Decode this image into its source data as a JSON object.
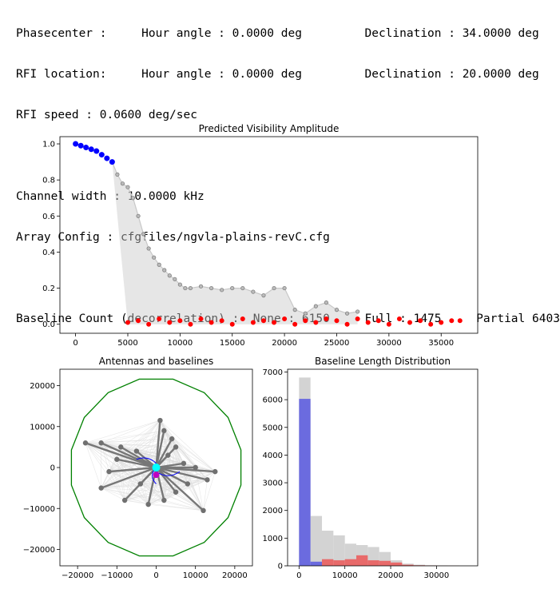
{
  "header": {
    "line1": "Phasecenter :     Hour angle : 0.0000 deg         Declination : 34.0000 deg",
    "line2": "RFI location:     Hour angle : 0.0000 deg         Declination : 20.0000 deg",
    "line3": "RFI speed : 0.0600 deg/sec",
    "line4": "",
    "line5": "Channel width : 10.0000 kHz",
    "line6": "Array Config : cfgfiles/ngvla-plains-revC.cfg",
    "line7": "",
    "line8": "Baseline Count (decorrelation) :  None : 6150     Full : 1475     Partial 6403"
  },
  "colors": {
    "gray_points": "#808080",
    "gray_lines": "#c8c8c8",
    "blue": "#0000ff",
    "red": "#ff0000",
    "green": "#008000",
    "cyan": "#00ffff",
    "magenta": "#c000c0",
    "hist_gray": "#d3d3d3",
    "hist_blue": "#6b6bdf",
    "hist_red": "#e86a6a"
  },
  "chart_data": [
    {
      "type": "scatter",
      "title": "Predicted Visibility Amplitude",
      "xlabel": "",
      "ylabel": "",
      "xlim": [
        -1500,
        38500
      ],
      "ylim": [
        -0.05,
        1.04
      ],
      "xticks": [
        0,
        5000,
        10000,
        15000,
        20000,
        25000,
        30000,
        35000
      ],
      "xtick_labels": [
        "0",
        "5000",
        "10000",
        "15000",
        "20000",
        "25000",
        "30000",
        "35000"
      ],
      "yticks": [
        0.0,
        0.2,
        0.4,
        0.6,
        0.8,
        1.0
      ],
      "ytick_labels": [
        "0.0",
        "0.2",
        "0.4",
        "0.6",
        "0.8",
        "1.0"
      ],
      "grid": false,
      "series": [
        {
          "color_key": "gray_points",
          "x": [
            3500,
            4000,
            4500,
            5000,
            5500,
            6000,
            6500,
            7000,
            7500,
            8000,
            8500,
            9000,
            9500,
            10000,
            10500,
            11000,
            12000,
            13000,
            14000,
            15000,
            16000,
            17000,
            18000,
            19000,
            20000,
            21000,
            22000,
            23000,
            24000,
            25000,
            26000,
            27000
          ],
          "y": [
            0.9,
            0.83,
            0.78,
            0.76,
            0.7,
            0.6,
            0.5,
            0.42,
            0.37,
            0.33,
            0.3,
            0.27,
            0.25,
            0.22,
            0.2,
            0.2,
            0.21,
            0.2,
            0.19,
            0.2,
            0.2,
            0.18,
            0.16,
            0.2,
            0.2,
            0.08,
            0.06,
            0.1,
            0.12,
            0.08,
            0.06,
            0.07
          ]
        },
        {
          "color_key": "blue",
          "x": [
            0,
            500,
            1000,
            1500,
            2000,
            2500,
            3000,
            3500
          ],
          "y": [
            1.0,
            0.99,
            0.98,
            0.97,
            0.96,
            0.94,
            0.92,
            0.9
          ]
        },
        {
          "color_key": "red",
          "x": [
            5000,
            6000,
            7000,
            8000,
            9000,
            10000,
            11000,
            12000,
            13000,
            14000,
            15000,
            16000,
            17000,
            18000,
            19000,
            20000,
            21000,
            22000,
            23000,
            24000,
            25000,
            26000,
            27000,
            28000,
            29000,
            30000,
            31000,
            32000,
            33000,
            34000,
            35000,
            36000,
            36800
          ],
          "y": [
            0.01,
            0.02,
            0.0,
            0.03,
            0.01,
            0.02,
            0.0,
            0.03,
            0.01,
            0.02,
            0.0,
            0.03,
            0.01,
            0.02,
            0.01,
            0.03,
            0.0,
            0.02,
            0.01,
            0.03,
            0.02,
            0.0,
            0.03,
            0.01,
            0.02,
            0.0,
            0.03,
            0.01,
            0.02,
            0.0,
            0.01,
            0.02,
            0.02
          ]
        }
      ]
    },
    {
      "type": "scatter",
      "title": "Antennas and baselines",
      "xlim": [
        -24500,
        24500
      ],
      "ylim": [
        -24000,
        24000
      ],
      "xticks": [
        -20000,
        -10000,
        0,
        10000,
        20000
      ],
      "xtick_labels": [
        "−20000",
        "−10000",
        "0",
        "10000",
        "20000"
      ],
      "yticks": [
        -20000,
        -10000,
        0,
        10000,
        20000
      ],
      "ytick_labels": [
        "−20000",
        "−10000",
        "0",
        "10000",
        "20000"
      ],
      "antennas": {
        "x": [
          -18000,
          -14000,
          -9000,
          -5000,
          -10000,
          -12000,
          -14000,
          -8000,
          -4000,
          1000,
          2000,
          4000,
          5000,
          3000,
          7000,
          10000,
          12000,
          15000,
          13000,
          8000,
          5000,
          2000,
          -2000
        ],
        "y": [
          6000,
          6000,
          5000,
          4000,
          2000,
          -1000,
          -5000,
          -8000,
          -4000,
          11500,
          9000,
          7000,
          5000,
          3000,
          1000,
          0,
          -10500,
          -1000,
          -3000,
          -4000,
          -6000,
          -8000,
          -9000
        ]
      },
      "circle_radius": 22000
    },
    {
      "type": "bar",
      "title": "Baseline Length Distribution",
      "xlim": [
        -2500,
        39000
      ],
      "ylim": [
        0,
        7100
      ],
      "xticks": [
        0,
        10000,
        20000,
        30000
      ],
      "xtick_labels": [
        "0",
        "10000",
        "20000",
        "30000"
      ],
      "yticks": [
        0,
        1000,
        2000,
        3000,
        4000,
        5000,
        6000,
        7000
      ],
      "ytick_labels": [
        "0",
        "1000",
        "2000",
        "3000",
        "4000",
        "5000",
        "6000",
        "7000"
      ],
      "bin_edges": [
        0,
        2500,
        5000,
        7500,
        10000,
        12500,
        15000,
        17500,
        20000,
        22500,
        25000,
        27500,
        30000,
        32500,
        35000
      ],
      "series": [
        {
          "color_key": "hist_gray",
          "values": [
            6800,
            1800,
            1270,
            1100,
            800,
            750,
            680,
            500,
            200,
            80,
            40,
            20,
            10,
            5
          ]
        },
        {
          "color_key": "hist_blue",
          "values": [
            6030,
            150,
            0,
            0,
            0,
            0,
            0,
            0,
            0,
            0,
            0,
            0,
            0,
            0
          ]
        },
        {
          "color_key": "hist_red",
          "values": [
            0,
            0,
            240,
            200,
            240,
            380,
            200,
            180,
            120,
            40,
            20,
            10,
            5,
            3
          ]
        }
      ]
    }
  ]
}
